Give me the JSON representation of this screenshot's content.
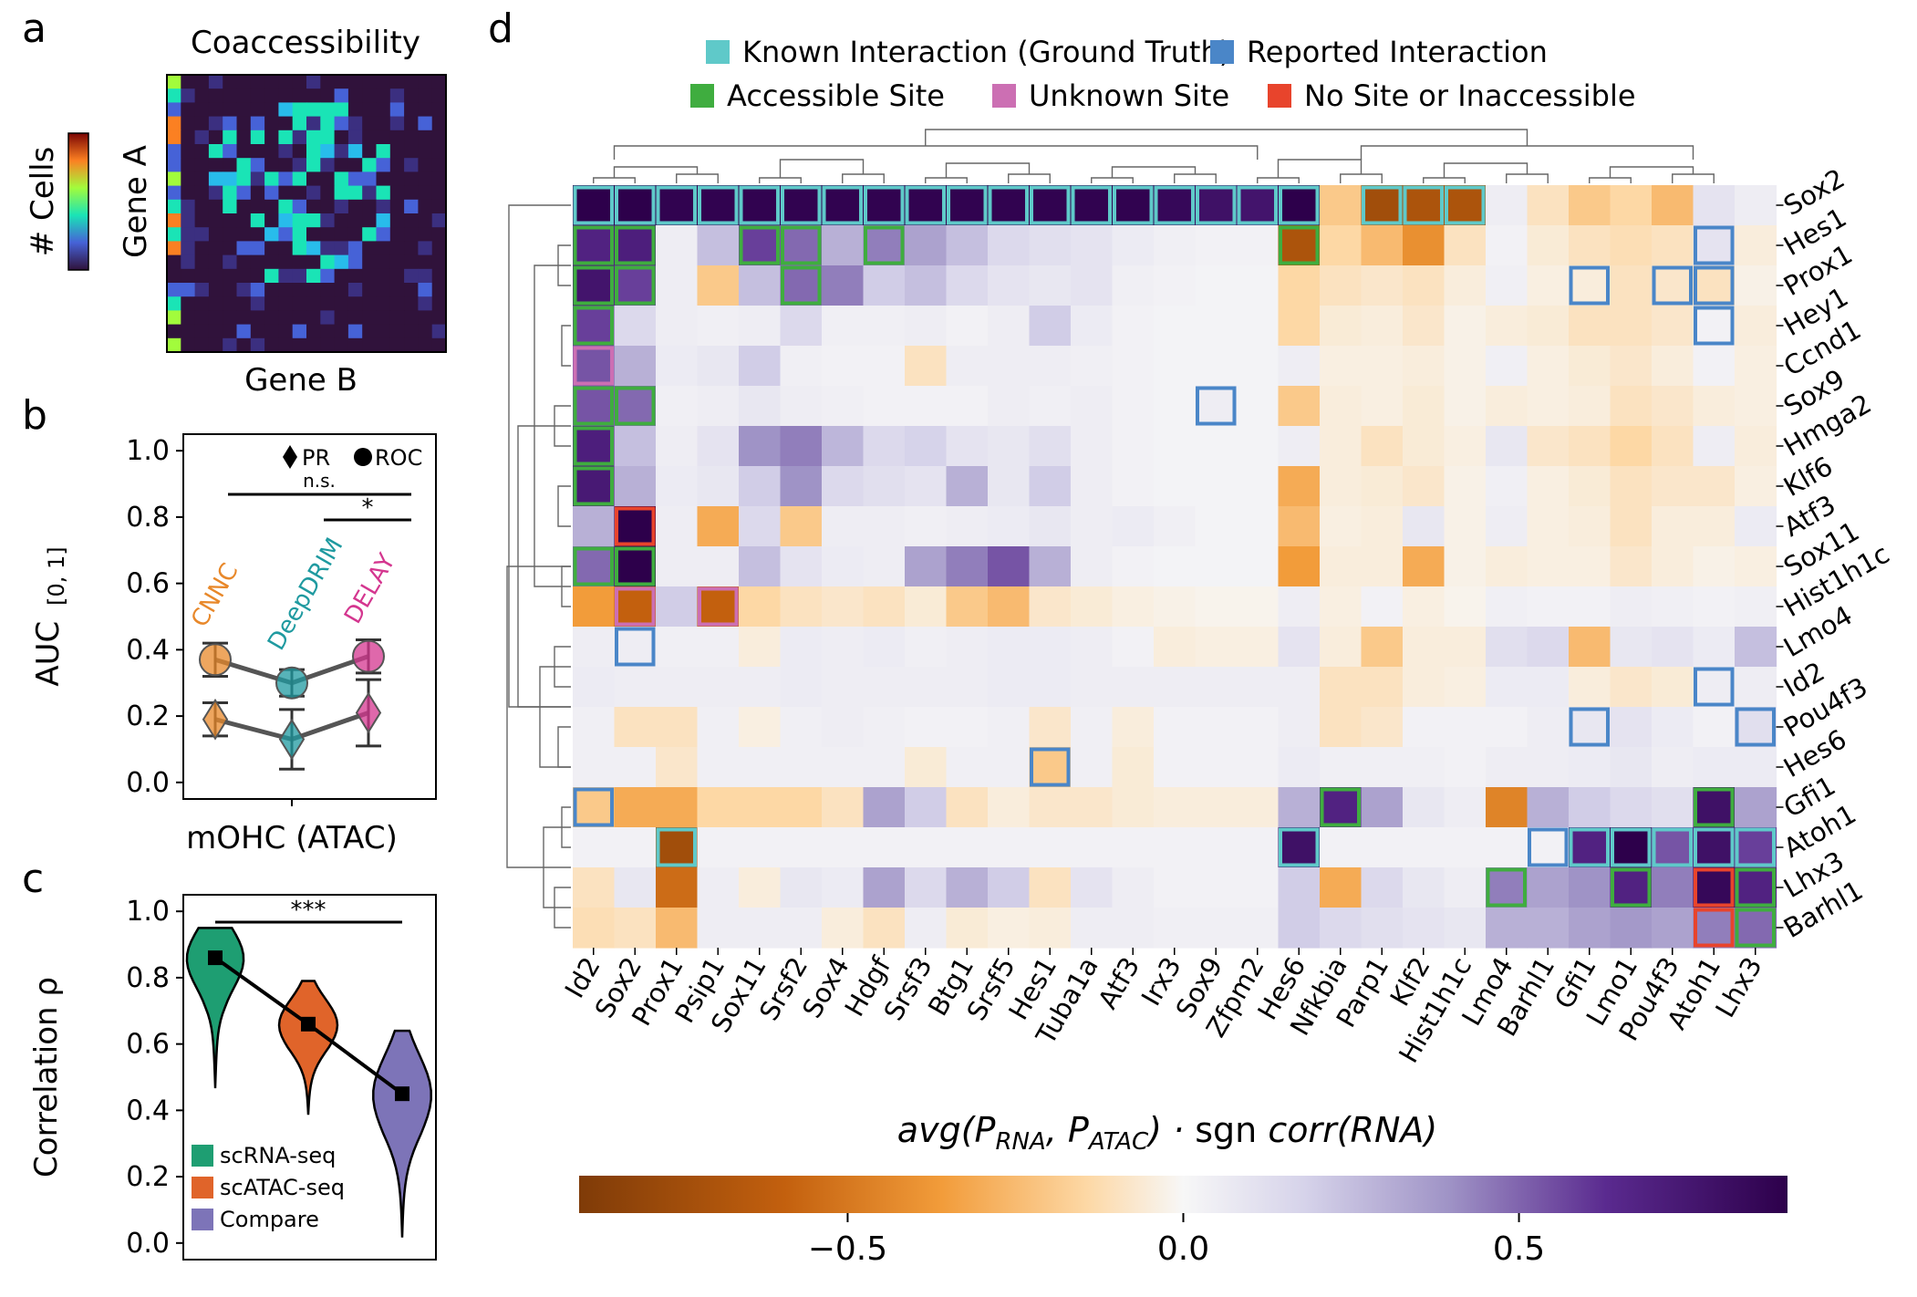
{
  "panels": {
    "a": {
      "letter": "a",
      "title": "Coaccessibility",
      "colorbar_label": "# Cells",
      "ylabel": "Gene A",
      "xlabel": "Gene B"
    },
    "b": {
      "letter": "b",
      "legend_pr": "PR",
      "legend_roc": "ROC",
      "sig_ns": "n.s.",
      "sig_star": "*",
      "ylabel": "AUC",
      "ylabel_sub": "[0, 1]",
      "xlabel": "mOHC (ATAC)",
      "yticks": [
        "0.0",
        "0.2",
        "0.4",
        "0.6",
        "0.8",
        "1.0"
      ]
    },
    "c": {
      "letter": "c",
      "sig": "***",
      "ylabel": "Correlation ρ",
      "yticks": [
        "0.0",
        "0.2",
        "0.4",
        "0.6",
        "0.8",
        "1.0"
      ]
    },
    "d": {
      "letter": "d",
      "legend": [
        {
          "label": "Known Interaction (Ground Truth)",
          "color": "#5fc9c9"
        },
        {
          "label": "Reported Interaction",
          "color": "#4a86c8"
        },
        {
          "label": "Accessible Site",
          "color": "#3fad3f"
        },
        {
          "label": "Unknown Site",
          "color": "#cc6fb3"
        },
        {
          "label": "No Site or Inaccessible",
          "color": "#e8442c"
        }
      ],
      "colorbar_label": "avg(P_RNA, P_ATAC) · sgn corr(RNA)",
      "colorbar_ticks": [
        "−0.5",
        "0.0",
        "0.5"
      ]
    }
  },
  "chart_data": [
    {
      "type": "heatmap",
      "title": "Coaccessibility",
      "xlabel": "Gene B",
      "ylabel": "Gene A",
      "colorbar_label": "# Cells",
      "grid_size": [
        20,
        20
      ]
    },
    {
      "type": "scatter",
      "xlabel": "mOHC (ATAC)",
      "ylabel": "AUC [0, 1]",
      "ylim": [
        0,
        1.05
      ],
      "categories": [
        "CNNC",
        "DeepDRIM",
        "DELAY"
      ],
      "category_colors": [
        "#e8882a",
        "#1f9aa0",
        "#d4368f"
      ],
      "series": [
        {
          "name": "ROC",
          "values": [
            0.37,
            0.3,
            0.38
          ],
          "errors": [
            0.05,
            0.04,
            0.05
          ]
        },
        {
          "name": "PR",
          "values": [
            0.19,
            0.13,
            0.21
          ],
          "errors": [
            0.05,
            0.09,
            0.1
          ]
        }
      ],
      "significance": [
        {
          "from": "CNNC",
          "to": "DELAY",
          "label": "n.s."
        },
        {
          "from": "DeepDRIM",
          "to": "DELAY",
          "label": "*"
        }
      ]
    },
    {
      "type": "violin",
      "ylabel": "Correlation ρ",
      "ylim": [
        0,
        1.05
      ],
      "series": [
        {
          "name": "scRNA-seq",
          "median": 0.86,
          "range": [
            0.47,
            0.95
          ],
          "color": "#1e9e72"
        },
        {
          "name": "scATAC-seq",
          "median": 0.66,
          "range": [
            0.39,
            0.79
          ],
          "color": "#e0642a"
        },
        {
          "name": "Compare",
          "median": 0.45,
          "range": [
            0.02,
            0.64
          ],
          "color": "#7d74b8"
        }
      ],
      "significance": [
        {
          "from": "scRNA-seq",
          "to": "Compare",
          "label": "***"
        }
      ]
    },
    {
      "type": "heatmap",
      "columns": [
        "Id2",
        "Sox2",
        "Prox1",
        "Psip1",
        "Sox11",
        "Srsf2",
        "Sox4",
        "Hdgf",
        "Srsf3",
        "Btg1",
        "Srsf5",
        "Hes1",
        "Tuba1a",
        "Atf3",
        "Irx3",
        "Sox9",
        "Zfpm2",
        "Hes6",
        "Nfkbia",
        "Parp1",
        "Klf2",
        "Hist1h1c",
        "Lmo4",
        "Barhl1",
        "Gfi1",
        "Lmo1",
        "Pou4f3",
        "Atoh1",
        "Lhx3"
      ],
      "rows": [
        "Sox2",
        "Hes1",
        "Prox1",
        "Hey1",
        "Ccnd1",
        "Sox9",
        "Hmga2",
        "Klf6",
        "Atf3",
        "Sox11",
        "Hist1h1c",
        "Lmo4",
        "Id2",
        "Pou4f3",
        "Hes6",
        "Gfi1",
        "Atoh1",
        "Lhx3",
        "Barhl1"
      ],
      "vrange": [
        -0.9,
        0.9
      ],
      "colorbar_ticks": [
        -0.5,
        0.0,
        0.5
      ],
      "values": [
        [
          0.9,
          0.9,
          0.88,
          0.88,
          0.88,
          0.88,
          0.88,
          0.88,
          0.88,
          0.88,
          0.88,
          0.88,
          0.88,
          0.88,
          0.85,
          0.8,
          0.78,
          0.92,
          -0.2,
          -0.75,
          -0.7,
          -0.7,
          0.05,
          -0.1,
          -0.2,
          -0.15,
          -0.25,
          0.1,
          0.05
        ],
        [
          0.7,
          0.72,
          0.05,
          0.25,
          0.6,
          0.5,
          0.3,
          0.45,
          0.35,
          0.25,
          0.15,
          0.12,
          0.1,
          0.06,
          0.04,
          0.03,
          0.03,
          -0.7,
          -0.15,
          -0.25,
          -0.4,
          -0.1,
          0.03,
          -0.06,
          -0.1,
          -0.12,
          -0.1,
          0.1,
          -0.05
        ],
        [
          0.78,
          0.6,
          0.05,
          -0.2,
          0.25,
          0.5,
          0.45,
          0.2,
          0.25,
          0.15,
          0.1,
          0.08,
          0.1,
          0.04,
          0.03,
          0.02,
          0.02,
          -0.15,
          -0.1,
          -0.08,
          -0.1,
          -0.05,
          0.04,
          -0.04,
          -0.05,
          -0.1,
          -0.08,
          -0.1,
          -0.03
        ],
        [
          0.6,
          0.15,
          0.05,
          0.04,
          0.05,
          0.15,
          0.04,
          0.04,
          0.05,
          0.03,
          0.05,
          0.2,
          0.06,
          0.03,
          0.02,
          0.02,
          0.02,
          -0.15,
          -0.06,
          -0.05,
          -0.08,
          -0.03,
          -0.05,
          -0.06,
          -0.1,
          -0.1,
          -0.08,
          0.03,
          -0.05
        ],
        [
          0.55,
          0.3,
          0.06,
          0.08,
          0.2,
          0.04,
          0.03,
          0.03,
          -0.1,
          0.05,
          0.05,
          0.05,
          0.04,
          0.03,
          0.02,
          0.02,
          0.02,
          0.05,
          -0.04,
          -0.04,
          -0.05,
          -0.03,
          0.04,
          -0.04,
          -0.06,
          -0.08,
          -0.05,
          0.03,
          -0.04
        ],
        [
          0.55,
          0.5,
          0.04,
          0.05,
          0.08,
          0.05,
          0.04,
          0.03,
          0.03,
          0.03,
          0.05,
          0.04,
          0.05,
          0.03,
          0.02,
          0.05,
          0.02,
          -0.2,
          -0.05,
          -0.04,
          -0.06,
          -0.03,
          -0.05,
          -0.04,
          -0.05,
          -0.1,
          -0.08,
          -0.05,
          -0.04
        ],
        [
          0.72,
          0.25,
          0.05,
          0.1,
          0.4,
          0.45,
          0.28,
          0.15,
          0.18,
          0.1,
          0.08,
          0.12,
          0.05,
          0.03,
          0.02,
          0.02,
          0.02,
          0.05,
          -0.05,
          -0.1,
          -0.06,
          -0.04,
          0.08,
          -0.08,
          -0.1,
          -0.15,
          -0.1,
          0.05,
          -0.05
        ],
        [
          0.75,
          0.3,
          0.06,
          0.08,
          0.2,
          0.4,
          0.15,
          0.12,
          0.1,
          0.3,
          0.08,
          0.2,
          0.05,
          0.03,
          0.02,
          0.02,
          0.02,
          -0.3,
          -0.05,
          -0.06,
          -0.08,
          -0.03,
          0.04,
          -0.04,
          -0.06,
          -0.1,
          -0.08,
          -0.08,
          -0.04
        ],
        [
          0.3,
          0.9,
          0.05,
          -0.3,
          0.15,
          -0.2,
          0.05,
          0.05,
          0.04,
          0.05,
          0.06,
          0.08,
          0.05,
          0.06,
          0.04,
          0.02,
          0.02,
          -0.25,
          -0.04,
          -0.05,
          0.08,
          -0.03,
          0.05,
          -0.04,
          -0.05,
          -0.1,
          -0.05,
          -0.05,
          0.06
        ],
        [
          0.5,
          0.9,
          0.05,
          0.05,
          0.25,
          0.1,
          0.06,
          0.05,
          0.35,
          0.45,
          0.55,
          0.3,
          0.05,
          0.03,
          0.02,
          0.02,
          0.02,
          -0.35,
          -0.05,
          -0.05,
          -0.3,
          -0.03,
          -0.05,
          -0.04,
          -0.04,
          -0.08,
          -0.05,
          -0.03,
          -0.04
        ],
        [
          -0.35,
          -0.6,
          0.2,
          -0.6,
          -0.15,
          -0.1,
          -0.08,
          -0.1,
          -0.06,
          -0.2,
          -0.25,
          -0.08,
          -0.06,
          -0.04,
          -0.03,
          -0.02,
          -0.02,
          0.05,
          -0.04,
          0.03,
          -0.04,
          -0.02,
          0.04,
          0.03,
          0.03,
          0.05,
          0.04,
          0.03,
          0.04
        ],
        [
          0.05,
          0.05,
          0.04,
          0.04,
          -0.05,
          0.06,
          0.05,
          0.06,
          0.04,
          0.05,
          0.06,
          0.06,
          0.05,
          0.03,
          -0.05,
          -0.04,
          -0.04,
          0.1,
          -0.05,
          -0.2,
          -0.05,
          -0.05,
          0.12,
          0.15,
          -0.25,
          0.08,
          0.1,
          0.06,
          0.25
        ],
        [
          0.06,
          0.05,
          0.05,
          0.05,
          0.05,
          0.06,
          0.05,
          0.05,
          0.05,
          0.05,
          0.06,
          0.06,
          0.05,
          0.05,
          0.05,
          0.05,
          0.05,
          0.05,
          -0.1,
          -0.1,
          -0.05,
          -0.04,
          0.06,
          0.06,
          -0.05,
          -0.08,
          -0.06,
          0.05,
          0.05
        ],
        [
          0.04,
          -0.1,
          -0.1,
          0.04,
          -0.04,
          0.04,
          0.05,
          0.04,
          0.03,
          0.03,
          0.04,
          -0.08,
          0.04,
          -0.05,
          0.03,
          0.03,
          0.03,
          0.05,
          -0.1,
          -0.08,
          0.03,
          0.03,
          0.03,
          0.05,
          0.08,
          0.1,
          0.06,
          0.03,
          0.12
        ],
        [
          0.04,
          0.04,
          -0.08,
          0.04,
          0.04,
          0.04,
          0.04,
          0.04,
          -0.06,
          0.04,
          0.04,
          -0.2,
          0.04,
          -0.06,
          0.03,
          0.03,
          0.03,
          0.06,
          0.04,
          0.04,
          0.04,
          0.03,
          0.05,
          0.05,
          0.06,
          0.08,
          0.05,
          0.06,
          0.06
        ],
        [
          -0.2,
          -0.3,
          -0.3,
          -0.15,
          -0.15,
          -0.15,
          -0.1,
          0.35,
          0.2,
          -0.1,
          -0.05,
          -0.08,
          -0.08,
          -0.06,
          -0.05,
          -0.05,
          -0.05,
          0.3,
          0.7,
          0.35,
          0.08,
          0.05,
          -0.45,
          0.3,
          0.2,
          0.15,
          0.12,
          0.8,
          0.35
        ],
        [
          0.03,
          0.03,
          -0.75,
          0.03,
          0.03,
          0.03,
          0.03,
          0.03,
          0.03,
          0.03,
          0.03,
          0.03,
          0.03,
          0.03,
          0.03,
          0.03,
          0.03,
          0.8,
          0.03,
          0.03,
          0.03,
          0.03,
          0.03,
          0.03,
          0.7,
          0.9,
          0.55,
          0.8,
          0.6
        ],
        [
          -0.1,
          0.08,
          -0.55,
          0.05,
          -0.05,
          0.08,
          0.06,
          0.35,
          0.15,
          0.3,
          0.2,
          -0.1,
          0.1,
          0.05,
          0.03,
          0.03,
          0.03,
          0.2,
          -0.3,
          0.15,
          0.08,
          0.05,
          0.45,
          0.35,
          0.4,
          0.7,
          0.45,
          0.85,
          0.7
        ],
        [
          -0.12,
          -0.1,
          -0.25,
          0.05,
          0.05,
          0.05,
          -0.05,
          -0.1,
          0.05,
          -0.06,
          -0.04,
          -0.05,
          0.05,
          0.05,
          0.04,
          0.04,
          0.04,
          0.2,
          0.15,
          0.12,
          0.1,
          0.08,
          0.3,
          0.3,
          0.35,
          0.38,
          0.35,
          0.45,
          0.5
        ]
      ]
    }
  ]
}
